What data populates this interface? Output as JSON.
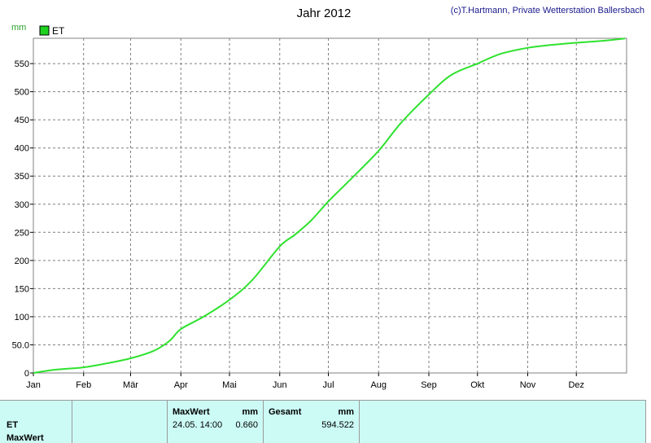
{
  "title": "Jahr 2012",
  "credit": "(c)T.Hartmann, Private Wetterstation Ballersbach",
  "unit": "mm",
  "legend": {
    "label": "ET",
    "color": "#1ed21e"
  },
  "colors": {
    "line": "#2ee22e",
    "grid": "#7f7f7f",
    "frame": "#808080",
    "panel": "#ccfbf6"
  },
  "chart_data": {
    "type": "line",
    "title": "Jahr 2012",
    "ylabel": "mm",
    "ylim": [
      0,
      595
    ],
    "x_label_ticks": [
      "Jan",
      "Feb",
      "Mär",
      "Apr",
      "Mai",
      "Jun",
      "Jul",
      "Aug",
      "Sep",
      "Okt",
      "Nov",
      "Dez"
    ],
    "y_ticks": [
      "0",
      "50.0",
      "100",
      "150",
      "200",
      "250",
      "300",
      "350",
      "400",
      "450",
      "500",
      "550"
    ],
    "y_tick_values": [
      0,
      50,
      100,
      150,
      200,
      250,
      300,
      350,
      400,
      450,
      500,
      550
    ],
    "grid": true,
    "legend_position": "top-left",
    "series": [
      {
        "name": "ET",
        "x": [
          "Jan 1",
          "Jan 15",
          "Feb 1",
          "Feb 15",
          "Mär 1",
          "Mär 15",
          "Mär 25",
          "Apr 1",
          "Apr 15",
          "Mai 1",
          "Mai 15",
          "Jun 1",
          "Jun 10",
          "Jun 20",
          "Jul 1",
          "Jul 15",
          "Aug 1",
          "Aug 15",
          "Sep 1",
          "Sep 15",
          "Okt 1",
          "Okt 15",
          "Nov 1",
          "Nov 15",
          "Dez 1",
          "Dez 15",
          "Dez 31"
        ],
        "values": [
          0,
          6,
          10,
          17,
          26,
          39,
          57,
          78,
          100,
          130,
          165,
          225,
          245,
          270,
          305,
          345,
          395,
          445,
          495,
          530,
          550,
          567,
          578,
          583,
          587,
          590,
          594.5
        ]
      }
    ]
  },
  "stats": {
    "row_label": "ET",
    "row_label_2": "MaxWert",
    "max_header": "MaxWert",
    "max_unit": "mm",
    "max_time": "24.05.  14:00",
    "max_value": "0.660",
    "total_header": "Gesamt",
    "total_unit": "mm",
    "total_value": "594.522"
  }
}
